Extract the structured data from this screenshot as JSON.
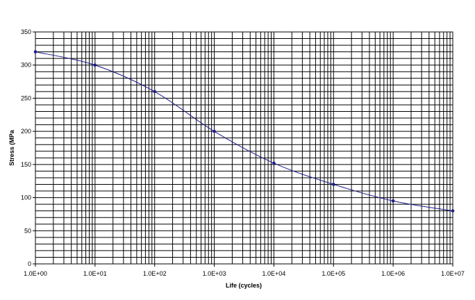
{
  "chart_data": {
    "type": "line",
    "x_scale": "log",
    "xlabel": "Life (cycles)",
    "ylabel": "Stress (MPa",
    "xlim": [
      1,
      10000000
    ],
    "ylim": [
      0,
      350
    ],
    "grid": true,
    "x_tick_labels": [
      "1.0E+00",
      "1.0E+01",
      "1.0E+02",
      "1.0E+03",
      "1.0E+04",
      "1.0E+05",
      "1.0E+06",
      "1.0E+07"
    ],
    "y_tick_labels": [
      "0",
      "50",
      "100",
      "150",
      "200",
      "250",
      "300",
      "350"
    ],
    "series": [
      {
        "x": [
          1,
          10,
          100,
          1000,
          10000,
          100000,
          1000000,
          10000000
        ],
        "y": [
          320,
          300,
          260,
          200,
          152,
          120,
          95,
          80
        ],
        "color": "#1c1c8c"
      }
    ]
  }
}
